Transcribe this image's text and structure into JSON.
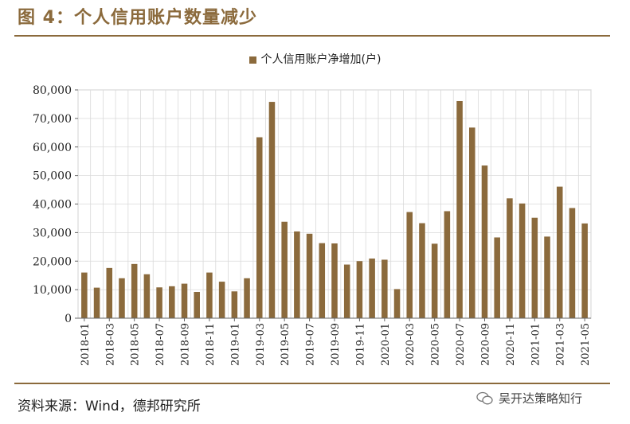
{
  "header": {
    "title": "图 4：个人信用账户数量减少"
  },
  "footer": {
    "source": "资料来源：Wind，德邦研究所",
    "watermark": "吴开达策略知行"
  },
  "colors": {
    "accent": "#8B6A3C",
    "bar": "#8B6A3C",
    "grid": "#d9d9d9"
  },
  "chart_data": {
    "type": "bar",
    "title": "",
    "xlabel": "",
    "ylabel": "",
    "ylim": [
      0,
      80000
    ],
    "yticks": [
      "0",
      "10,000",
      "20,000",
      "30,000",
      "40,000",
      "50,000",
      "60,000",
      "70,000",
      "80,000"
    ],
    "grid": true,
    "legend": "top-center",
    "categories": [
      "2018-01",
      "2018-02",
      "2018-03",
      "2018-04",
      "2018-05",
      "2018-06",
      "2018-07",
      "2018-08",
      "2018-09",
      "2018-10",
      "2018-11",
      "2018-12",
      "2019-01",
      "2019-02",
      "2019-03",
      "2019-04",
      "2019-05",
      "2019-06",
      "2019-07",
      "2019-08",
      "2019-09",
      "2019-10",
      "2019-11",
      "2019-12",
      "2020-01",
      "2020-02",
      "2020-03",
      "2020-04",
      "2020-05",
      "2020-06",
      "2020-07",
      "2020-08",
      "2020-09",
      "2020-10",
      "2020-11",
      "2020-12",
      "2021-01",
      "2021-02",
      "2021-03",
      "2021-04",
      "2021-05"
    ],
    "tick_labels": [
      "2018-01",
      "2018-03",
      "2018-05",
      "2018-07",
      "2018-09",
      "2018-11",
      "2019-01",
      "2019-03",
      "2019-05",
      "2019-07",
      "2019-09",
      "2019-11",
      "2020-01",
      "2020-03",
      "2020-05",
      "2020-07",
      "2020-09",
      "2020-11",
      "2021-01",
      "2021-03",
      "2021-05"
    ],
    "series": [
      {
        "name": "个人信用账户净增加(户)",
        "values": [
          16000,
          10700,
          17600,
          14000,
          19000,
          15400,
          10800,
          11200,
          12100,
          9200,
          16000,
          12800,
          9400,
          14000,
          63400,
          75800,
          33800,
          30400,
          29600,
          26300,
          26200,
          18800,
          20000,
          20900,
          20500,
          10200,
          37200,
          33300,
          26100,
          37500,
          76100,
          66800,
          53500,
          28300,
          42000,
          40200,
          35200,
          28600,
          46100,
          38600,
          33200
        ]
      }
    ]
  }
}
